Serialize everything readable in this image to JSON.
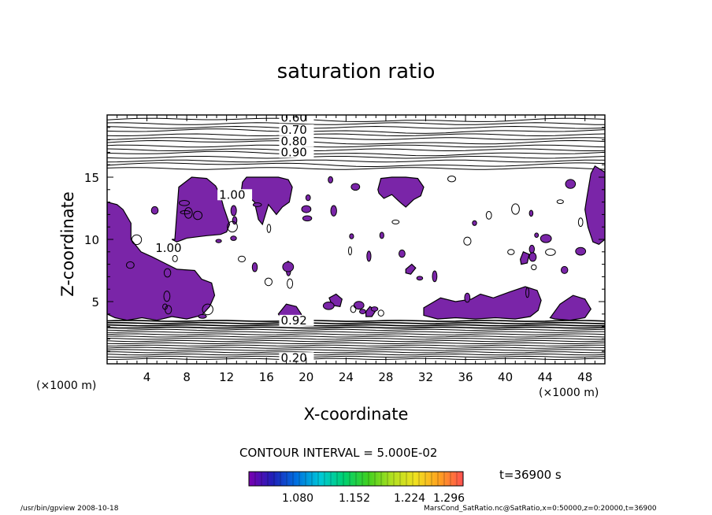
{
  "chart_data": {
    "type": "contour",
    "title": "saturation ratio",
    "xlabel": "X-coordinate",
    "ylabel": "Z-coordinate",
    "x_unit": "(×1000 m)",
    "y_unit": "(×1000 m)",
    "xlim": [
      0,
      50
    ],
    "ylim": [
      0,
      20
    ],
    "x_ticks": [
      4,
      8,
      12,
      16,
      20,
      24,
      28,
      32,
      36,
      40,
      44,
      48
    ],
    "y_ticks": [
      5,
      10,
      15
    ],
    "contour_labels": [
      {
        "text": "0.60",
        "x": 17.6,
        "z": 19.6
      },
      {
        "text": "0.70",
        "x": 17.6,
        "z": 18.6
      },
      {
        "text": "0.80",
        "x": 17.6,
        "z": 17.7
      },
      {
        "text": "0.90",
        "x": 17.6,
        "z": 16.8
      },
      {
        "text": "1.00",
        "x": 11.4,
        "z": 13.4
      },
      {
        "text": "1.00",
        "x": 5.0,
        "z": 9.1
      },
      {
        "text": "0.92",
        "x": 17.6,
        "z": 3.3
      },
      {
        "text": "0.20",
        "x": 17.6,
        "z": 0.3
      }
    ],
    "supersaturated_regions": [
      {
        "x": [
          6.8,
          7.2,
          8.5,
          10.0,
          10.9,
          11.4,
          11.7,
          12.3,
          12.0,
          11.4,
          10.0,
          8.0,
          7.0,
          6.5
        ],
        "z": [
          10.0,
          14.2,
          15.0,
          14.9,
          14.3,
          13.5,
          12.6,
          11.2,
          10.6,
          10.4,
          10.3,
          10.1,
          9.8,
          10.0
        ]
      },
      {
        "x": [
          0,
          1.0,
          1.6,
          2.4,
          2.4,
          3.4,
          4.5,
          5.5,
          7.0,
          8.8,
          9.5,
          10.5,
          10.8,
          10.3,
          9.5,
          8.0,
          6.5,
          5.0,
          3.5,
          2.0,
          0.8,
          0
        ],
        "z": [
          13.0,
          12.8,
          12.4,
          11.3,
          10.0,
          9.0,
          8.6,
          8.2,
          7.6,
          7.5,
          6.8,
          6.5,
          5.5,
          4.6,
          3.9,
          3.6,
          3.8,
          3.5,
          3.7,
          3.5,
          3.7,
          4.0
        ]
      },
      {
        "x": [
          13.6,
          14.0,
          15.0,
          16.3,
          17.2,
          18.2,
          18.6,
          18.3,
          17.6,
          17.0,
          16.2,
          15.6,
          15.2,
          14.8,
          14.4,
          13.8,
          13.5
        ],
        "z": [
          14.6,
          15.0,
          15.0,
          15.0,
          15.0,
          14.8,
          14.2,
          13.0,
          12.6,
          12.0,
          12.8,
          11.2,
          11.6,
          13.0,
          13.3,
          13.2,
          14.0
        ]
      },
      {
        "x": [
          27.2,
          27.5,
          28.6,
          30.0,
          31.2,
          31.8,
          31.5,
          30.8,
          30.0,
          29.4,
          28.6,
          27.8,
          27.3
        ],
        "z": [
          14.0,
          14.9,
          15.0,
          15.0,
          14.9,
          14.2,
          13.5,
          13.2,
          12.6,
          13.0,
          13.6,
          13.3,
          13.7
        ]
      },
      {
        "x": [
          31.8,
          33.5,
          35.0,
          36.6,
          37.5,
          38.8,
          40.5,
          42.0,
          43.2,
          43.6,
          43.3,
          42.5,
          41.0,
          39.0,
          37.0,
          35.0,
          33.2,
          31.8
        ],
        "z": [
          4.5,
          5.3,
          5.0,
          5.2,
          5.6,
          5.3,
          5.8,
          6.2,
          5.9,
          5.1,
          4.3,
          3.8,
          3.6,
          3.7,
          3.6,
          3.7,
          3.6,
          3.9
        ]
      },
      {
        "x": [
          48.2,
          48.6,
          49.0,
          49.6,
          50.0,
          50.0,
          49.4,
          48.8,
          48.3,
          48.0
        ],
        "z": [
          13.4,
          15.3,
          15.9,
          15.6,
          15.4,
          10.0,
          9.6,
          9.8,
          11.0,
          12.4
        ]
      },
      {
        "x": [
          44.6,
          45.5,
          46.8,
          48.0,
          48.6,
          48.0,
          46.5,
          45.0,
          44.5
        ],
        "z": [
          3.8,
          4.8,
          5.5,
          5.2,
          4.4,
          3.7,
          3.5,
          3.6,
          3.7
        ]
      },
      {
        "x": [
          17.2,
          18.0,
          19.0,
          19.5,
          19.6,
          18.6,
          17.6
        ],
        "z": [
          4.0,
          4.8,
          4.6,
          4.0,
          3.6,
          3.4,
          3.5
        ]
      },
      {
        "x": [
          22.3,
          23.0,
          23.6,
          23.4,
          22.6
        ],
        "z": [
          5.3,
          5.6,
          5.2,
          4.6,
          4.7
        ]
      },
      {
        "x": [
          26.0,
          26.4,
          27.0,
          26.6,
          26.0
        ],
        "z": [
          4.2,
          4.6,
          4.3,
          3.8,
          3.8
        ]
      },
      {
        "x": [
          41.5,
          41.8,
          42.4,
          42.2,
          41.6
        ],
        "z": [
          8.4,
          9.0,
          8.8,
          8.1,
          8.0
        ]
      },
      {
        "x": [
          30.0,
          30.6,
          31.0,
          30.5,
          30.0
        ],
        "z": [
          7.6,
          8.0,
          7.7,
          7.2,
          7.3
        ]
      }
    ],
    "fill_color": "#7a25a8",
    "contour_interval": "CONTOUR INTERVAL = 5.000E-02",
    "colorbar": {
      "tick_labels": [
        "1.080",
        "1.152",
        "1.224",
        "1.296"
      ],
      "colors": [
        "#7a00b0",
        "#2020b8",
        "#0070e0",
        "#00c8d8",
        "#00d070",
        "#40d020",
        "#b0e020",
        "#f0e020",
        "#ffa020",
        "#ff5050"
      ]
    },
    "time_label": "t=36900 s"
  },
  "footer": {
    "left": "/usr/bin/gpview   2008-10-18",
    "right": "MarsCond_SatRatio.nc@SatRatio,x=0:50000,z=0:20000,t=36900"
  }
}
